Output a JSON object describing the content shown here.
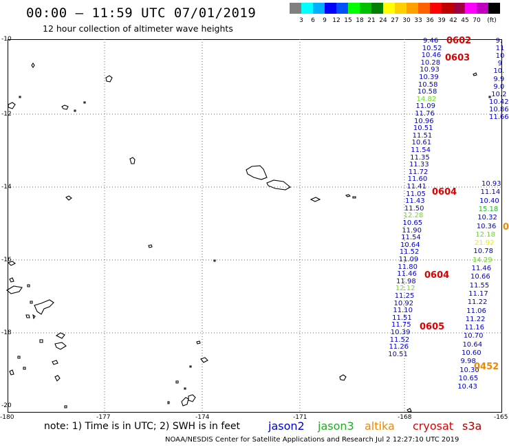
{
  "header": {
    "title": "00:00 – 11:59 UTC 07/01/2019",
    "subtitle": "12 hour collection of altimeter wave heights"
  },
  "scale": {
    "unit": "(ft)",
    "colors": [
      "#808080",
      "#00ffff",
      "#00b0ff",
      "#0000ff",
      "#0050ff",
      "#00ff00",
      "#00c000",
      "#008000",
      "#ffff00",
      "#ffd000",
      "#ffa000",
      "#ff6000",
      "#ff0000",
      "#c00000",
      "#a00040",
      "#ff00ff",
      "#c000c0",
      "#000000"
    ],
    "labels": [
      "3",
      "6",
      "9",
      "12",
      "15",
      "18",
      "21",
      "24",
      "27",
      "30",
      "33",
      "36",
      "39",
      "42",
      "45",
      "70"
    ]
  },
  "axes": {
    "lat_labels": [
      "-10",
      "-12",
      "-14",
      "-16",
      "-18",
      "-20"
    ],
    "lon_labels": [
      "-180",
      "-177",
      "-174",
      "-171",
      "-168",
      "-165"
    ]
  },
  "tracks": [
    {
      "values": [
        "9.46",
        "10.52",
        "10.46",
        "10.28",
        "10.93",
        "10.39",
        "10.58",
        "10.58",
        "14.82",
        "11.09",
        "11.76",
        "10.96",
        "10.51",
        "11.51",
        "10.61",
        "11.54",
        "11.35",
        "11.33",
        "11.72",
        "11.60",
        "11.41",
        "11.05",
        "11.43",
        "11.50",
        "12.28",
        "10.65",
        "11.90",
        "11.54",
        "10.64",
        "11.52",
        "11.09",
        "11.80",
        "11.46",
        "11.98",
        "12.12",
        "11.25",
        "10.92",
        "11.10",
        "11.51",
        "11.75",
        "10.39",
        "11.52",
        "11.26",
        "10.51"
      ],
      "colors": [
        "#0000cc",
        "#0000cc",
        "#0000cc",
        "#0000cc",
        "#0000cc",
        "#0000cc",
        "#0000cc",
        "#0000cc",
        "#66dd22",
        "#0000cc",
        "#0000cc",
        "#0000cc",
        "#0000cc",
        "#0000cc",
        "#0000cc",
        "#0000cc",
        "#0000cc",
        "#0000cc",
        "#0000cc",
        "#0000cc",
        "#0000cc",
        "#0000cc",
        "#0000cc",
        "#0000cc",
        "#66dd22",
        "#0000cc",
        "#0000cc",
        "#0000cc",
        "#0000cc",
        "#0000cc",
        "#0000cc",
        "#0000cc",
        "#0000cc",
        "#0000cc",
        "#66dd22",
        "#0000cc",
        "#0000cc",
        "#0000cc",
        "#0000cc",
        "#0000cc",
        "#0000cc",
        "#0000cc",
        "#0000cc",
        "#0000cc"
      ]
    },
    {
      "values": [
        "10.93",
        "11.14",
        "10.40",
        "15.18",
        "10.32",
        "10.36",
        "12.18",
        "21.92",
        "10.78",
        "14.29",
        "11.46",
        "10.66",
        "11.55",
        "11.17",
        "11.22",
        "11.06",
        "11.22",
        "11.16",
        "10.70",
        "10.64",
        "10.60",
        "9.98",
        "10.30",
        "10.65",
        "10.43"
      ],
      "colors": [
        "#0000cc",
        "#0000cc",
        "#0000cc",
        "#22bb22",
        "#0000cc",
        "#0000cc",
        "#66dd22",
        "#eeee00",
        "#0000cc",
        "#66dd22",
        "#0000cc",
        "#0000cc",
        "#0000cc",
        "#0000cc",
        "#0000cc",
        "#0000cc",
        "#0000cc",
        "#0000cc",
        "#0000cc",
        "#0000cc",
        "#0000cc",
        "#0000cc",
        "#0000cc",
        "#0000cc",
        "#0000cc"
      ]
    },
    {
      "values": [
        "9.",
        "11",
        "10",
        "9",
        "10.",
        "9.9",
        "9.0",
        "10.2",
        "10.42",
        "10.86",
        "11.66"
      ],
      "colors": [
        "#0000cc",
        "#0000cc",
        "#0000cc",
        "#0000cc",
        "#0000cc",
        "#0000cc",
        "#0000cc",
        "#0000cc",
        "#0000cc",
        "#0000cc",
        "#0000cc"
      ]
    }
  ],
  "pass_labels": [
    {
      "text": "0602",
      "color": "#dd0000"
    },
    {
      "text": "0603",
      "color": "#dd0000"
    },
    {
      "text": "0604",
      "color": "#dd0000"
    },
    {
      "text": "0604",
      "color": "#dd0000"
    },
    {
      "text": "0605",
      "color": "#dd0000"
    },
    {
      "text": "0452",
      "color": "#ee8800"
    },
    {
      "text": "0",
      "color": "#ee8800"
    }
  ],
  "note": "note:  1) Time is in UTC;  2) SWH is in feet",
  "satellites": [
    {
      "name": "jason2",
      "color": "#0000cc"
    },
    {
      "name": "jason3",
      "color": "#22aa22"
    },
    {
      "name": "altika",
      "color": "#ee8800"
    },
    {
      "name": "cryosat",
      "color": "#dd0000"
    },
    {
      "name": "s3a",
      "color": "#aa0000"
    }
  ],
  "footer": "NOAA/NESDIS Center for Satellite Applications and Research   Jul  2 12:27:10 UTC 2019"
}
